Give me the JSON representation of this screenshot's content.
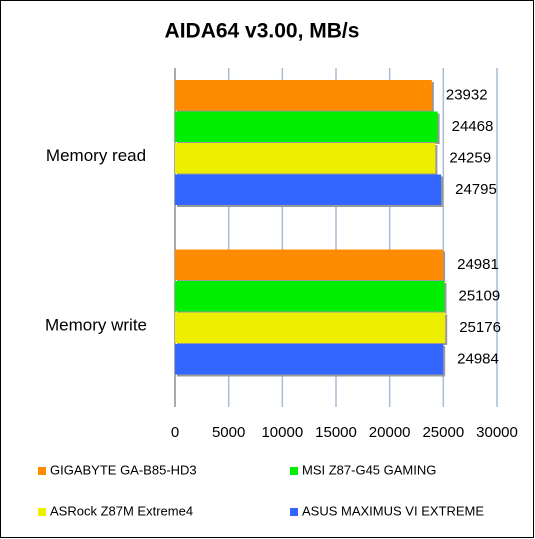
{
  "chart_data": {
    "type": "bar",
    "orientation": "horizontal",
    "title": "AIDA64 v3.00, MB/s",
    "categories": [
      "Memory read",
      "Memory write"
    ],
    "series": [
      {
        "name": "GIGABYTE GA-B85-HD3",
        "color": "#ff8c00",
        "values": [
          23932,
          24981
        ]
      },
      {
        "name": "MSI Z87-G45 GAMING",
        "color": "#00ee00",
        "values": [
          24468,
          25109
        ]
      },
      {
        "name": "ASRock Z87M Extreme4",
        "color": "#eeee00",
        "values": [
          24259,
          25176
        ]
      },
      {
        "name": "ASUS MAXIMUS VI EXTREME",
        "color": "#3366ff",
        "values": [
          24795,
          24984
        ]
      }
    ],
    "xlim": [
      0,
      30000
    ],
    "xticks": [
      0,
      5000,
      10000,
      15000,
      20000,
      25000,
      30000
    ],
    "grid": true,
    "legend": "bottom"
  }
}
